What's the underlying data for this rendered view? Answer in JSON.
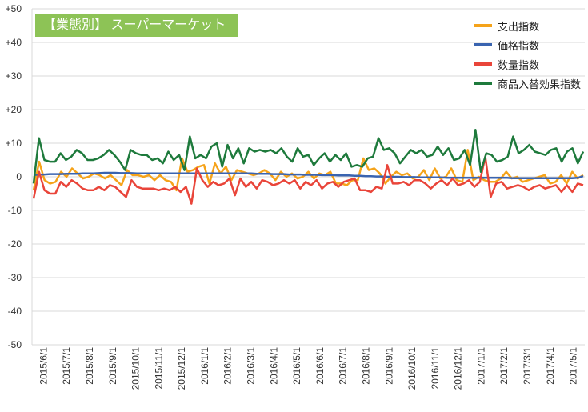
{
  "title": "【業態別】 スーパーマーケット",
  "legend_position": "top-right",
  "chart_data": {
    "type": "line",
    "title": "【業態別】 スーパーマーケット",
    "grid": true,
    "ylim": [
      -50,
      50
    ],
    "y_ticks": [
      "+50",
      "+40",
      "+30",
      "+20",
      "+10",
      "0",
      "-10",
      "-20",
      "-30",
      "-40",
      "-50"
    ],
    "x_tick_labels": [
      "2015/6/1",
      "2015/7/1",
      "2015/8/1",
      "2015/9/1",
      "2015/10/1",
      "2015/11/1",
      "2015/12/1",
      "2016/1/1",
      "2016/2/1",
      "2016/3/1",
      "2016/4/1",
      "2016/5/1",
      "2016/6/1",
      "2016/7/1",
      "2016/8/1",
      "2016/9/1",
      "2016/10/1",
      "2016/11/1",
      "2016/12/1",
      "2017/1/1",
      "2017/2/1",
      "2017/3/1",
      "2017/4/1",
      "2017/5/1"
    ],
    "series": [
      {
        "name": "支出指数",
        "color": "#f5a31a",
        "values": [
          -4,
          4.5,
          -1,
          -2,
          -1.5,
          1.5,
          0,
          2.5,
          1,
          -0.5,
          0,
          1,
          0.5,
          -0.5,
          0.5,
          -1,
          -2.5,
          2,
          0.5,
          0.5,
          0,
          0.5,
          -1,
          0.5,
          -1,
          -1.5,
          -4,
          5.5,
          1.5,
          2,
          3,
          3.5,
          -2,
          4,
          1,
          3,
          -1,
          2,
          1.5,
          1,
          0.5,
          1,
          2,
          1,
          -1,
          1.5,
          0,
          1,
          -0.5,
          0,
          1.5,
          -0.5,
          1,
          0.5,
          1.5,
          -2,
          -2,
          -2.5,
          -1,
          -1,
          5.5,
          2,
          2.5,
          1,
          -2,
          0,
          1.5,
          0.5,
          1,
          -0.5,
          0,
          2,
          -1,
          2.5,
          -0.5,
          0,
          2.5,
          -1,
          -1.5,
          8,
          -1,
          0,
          -1,
          -1.5,
          -1.5,
          -0.5,
          1.5,
          -0.5,
          0,
          -1.5,
          -1,
          -0.5,
          0,
          0.5,
          -2,
          -1.5,
          0.5,
          -2,
          1.5,
          -0.5,
          0.5
        ]
      },
      {
        "name": "価格指数",
        "color": "#3a64b0",
        "values": [
          0.5,
          0.7,
          0.7,
          0.8,
          0.8,
          0.8,
          0.9,
          0.9,
          0.9,
          1,
          1,
          1,
          1.1,
          1.2,
          1.2,
          1.2,
          1.1,
          1.1,
          1.1,
          1,
          1,
          1,
          1,
          1,
          1,
          1,
          1,
          1,
          1,
          1,
          1,
          1,
          1,
          1,
          1,
          1,
          1,
          1,
          1,
          1,
          1,
          0.9,
          0.9,
          0.9,
          0.8,
          0.8,
          0.8,
          0.7,
          0.7,
          0.7,
          0.6,
          0.6,
          0.6,
          0.5,
          0.5,
          0.5,
          0.4,
          0.4,
          0.4,
          0.3,
          0.3,
          0.2,
          0.2,
          0.1,
          0.1,
          0,
          0,
          0,
          -0.1,
          -0.1,
          -0.1,
          -0.2,
          -0.2,
          -0.2,
          -0.2,
          -0.2,
          -0.3,
          -0.3,
          -0.3,
          -0.3,
          -0.3,
          -0.3,
          -0.3,
          -0.3,
          -0.3,
          -0.3,
          -0.3,
          -0.3,
          -0.4,
          -0.4,
          -0.4,
          -0.4,
          -0.4,
          -0.4,
          -0.4,
          -0.4,
          -0.4,
          -0.4,
          -0.4,
          -0.4,
          -0.3,
          0.2
        ]
      },
      {
        "name": "数量指数",
        "color": "#e9453a",
        "values": [
          -6.5,
          1.5,
          -4,
          -5,
          -5,
          -1.5,
          -3,
          -1,
          -2,
          -3.5,
          -4,
          -4,
          -3,
          -4,
          -2.5,
          -3,
          -4.5,
          -6,
          -1,
          -3,
          -3.5,
          -3.5,
          -3.5,
          -4,
          -3.5,
          -4,
          -3,
          -4.5,
          -3,
          -8,
          2.5,
          -1,
          -3,
          -1.5,
          -2.5,
          -2,
          -0.5,
          -5.5,
          -0.5,
          -3,
          -1.5,
          -3.5,
          -1,
          -1.5,
          -2.5,
          -2,
          -1,
          -2,
          -1,
          -3.5,
          -1.5,
          -2.5,
          -1,
          -3.5,
          -2,
          -1.5,
          -3,
          -1.5,
          -1,
          -0.5,
          -4,
          -4,
          -4.5,
          -3,
          -3.5,
          3.5,
          -2,
          -2,
          -1.5,
          -2.5,
          -1,
          -1,
          -2,
          -3.5,
          -2,
          -1,
          -2.5,
          -0.5,
          -2.5,
          -2,
          -1,
          -3,
          -1.5,
          6,
          -6,
          -2,
          -1.5,
          -3.5,
          -3,
          -2.5,
          -3,
          -4,
          -3,
          -2.5,
          -3.5,
          -3,
          -2.5,
          -4.5,
          -2.5,
          -4.5,
          -2,
          -2.5
        ]
      },
      {
        "name": "商品入替効果指数",
        "color": "#1e7a3c",
        "values": [
          -2,
          11.5,
          5,
          4.5,
          4.5,
          7,
          5,
          6,
          8,
          7,
          5,
          5,
          5.5,
          6.5,
          8,
          6.5,
          4.5,
          2,
          8,
          7,
          6.5,
          6.5,
          5,
          5.5,
          4,
          7.5,
          5,
          6.5,
          2,
          12,
          5.5,
          6.5,
          5.5,
          9,
          10,
          3,
          9.5,
          5.5,
          8.5,
          4,
          8.5,
          7.5,
          8,
          7.5,
          8,
          7,
          8.5,
          6,
          4.5,
          8.5,
          6,
          6.5,
          3.5,
          5.5,
          7,
          4.5,
          6.5,
          5,
          7,
          3,
          3.5,
          3,
          5.5,
          6,
          11.5,
          8,
          8.5,
          7,
          4,
          6,
          8,
          7,
          8,
          6,
          6.5,
          9,
          6.5,
          8.5,
          5,
          5.5,
          8,
          3.5,
          14,
          1.5,
          7,
          6.5,
          4.5,
          5,
          6,
          12,
          7,
          8,
          9.5,
          7.5,
          7,
          6.5,
          8,
          8.5,
          4.5,
          7.5,
          8.5,
          4,
          7.5
        ]
      }
    ]
  }
}
